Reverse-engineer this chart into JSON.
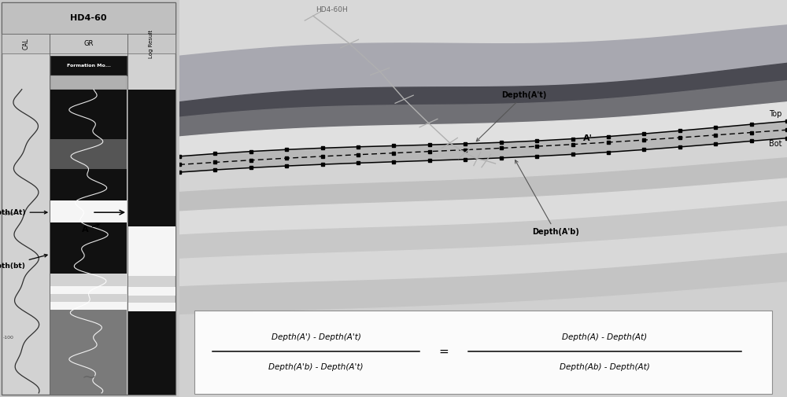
{
  "title_left": "HD4-60",
  "title_right": "HD4-60H",
  "col_labels": [
    "CAL",
    "GR",
    "Log Result"
  ],
  "formation_label": "Formation Mo...",
  "depth_at_label": "Depth(At)",
  "depth_bt_label": "Depth(bt)",
  "depth_at_prime_label": "Depth(A't)",
  "depth_ab_prime_label": "Depth(A'b)",
  "label_A": "A",
  "label_A_prime": "A'",
  "label_Top": "Top",
  "label_Bot": "Bot",
  "formula_left_num": "Depth(A') - Depth(A't)",
  "formula_left_den": "Depth(A'b) - Depth(A't)",
  "formula_right_num": "Depth(A) - Depth(At)",
  "formula_right_den": "Depth(Ab) - Depth(At)",
  "bg_color": "#c8c8c8",
  "left_panel_bg": "#c8c8c8",
  "right_panel_bg": "#d8d8d8"
}
